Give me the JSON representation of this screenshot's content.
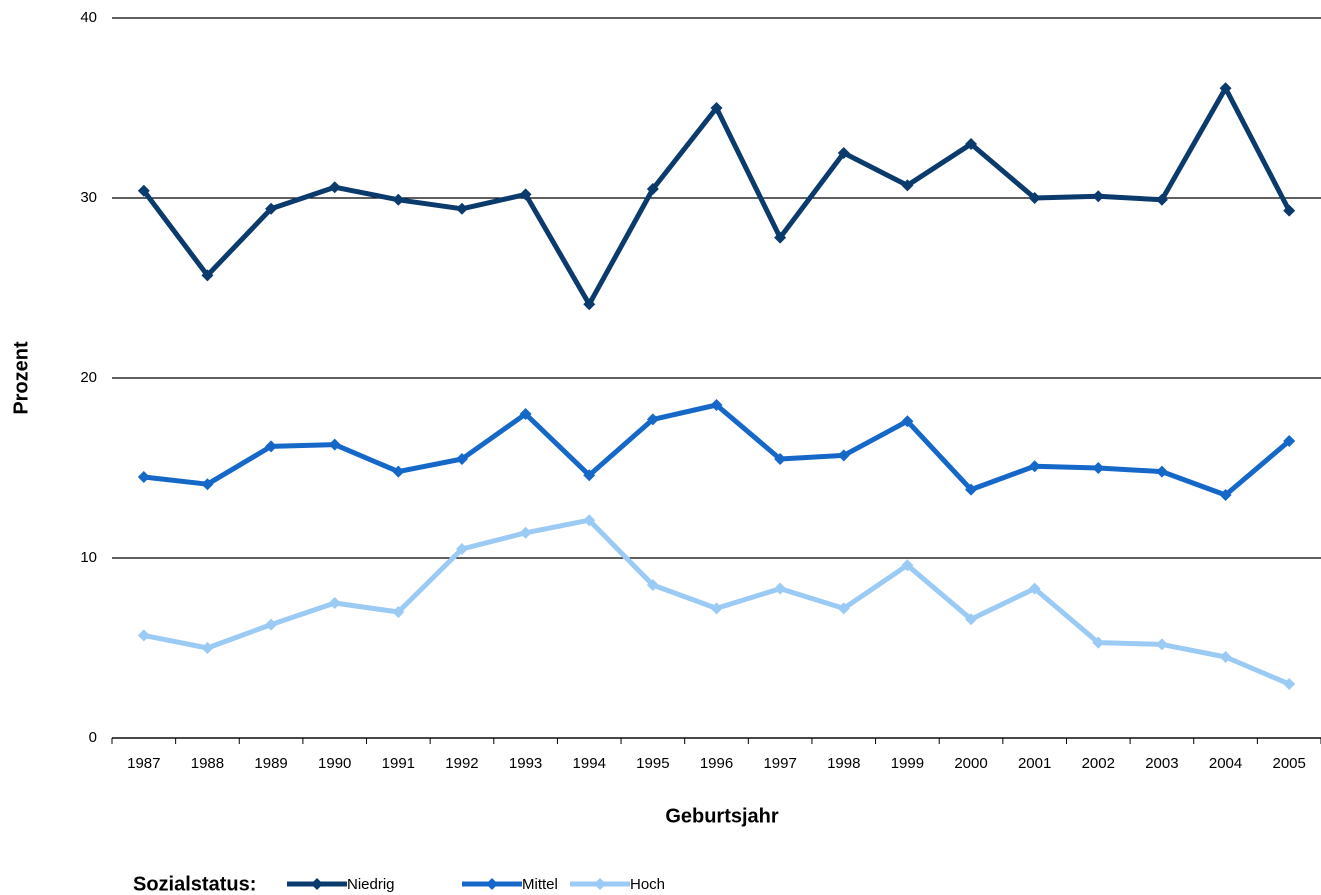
{
  "chart_data": {
    "type": "line",
    "x_label": "Geburtsjahr",
    "y_label": "Prozent",
    "legend_title": "Sozialstatus:",
    "categories": [
      "1987",
      "1988",
      "1989",
      "1990",
      "1991",
      "1992",
      "1993",
      "1994",
      "1995",
      "1996",
      "1997",
      "1998",
      "1999",
      "2000",
      "2001",
      "2002",
      "2003",
      "2004",
      "2005"
    ],
    "series": [
      {
        "name": "Niedrig",
        "color": "#0b3a6c",
        "values": [
          30.4,
          25.7,
          29.4,
          30.6,
          29.9,
          29.4,
          30.2,
          24.1,
          30.5,
          35.0,
          27.8,
          32.5,
          30.7,
          33.0,
          30.0,
          30.1,
          29.9,
          36.1,
          29.3
        ]
      },
      {
        "name": "Mittel",
        "color": "#1568c8",
        "values": [
          14.5,
          14.1,
          16.2,
          16.3,
          14.8,
          15.5,
          18.0,
          14.6,
          17.7,
          18.5,
          15.5,
          15.7,
          17.6,
          13.8,
          15.1,
          15.0,
          14.8,
          13.5,
          16.5
        ]
      },
      {
        "name": "Hoch",
        "color": "#9bcaf5",
        "values": [
          5.7,
          5.0,
          6.3,
          7.5,
          7.0,
          10.5,
          11.4,
          12.1,
          8.5,
          7.2,
          8.3,
          7.2,
          9.6,
          6.6,
          8.3,
          5.3,
          5.2,
          4.5,
          3.0
        ]
      }
    ],
    "ylim": [
      0,
      40
    ],
    "yticks": [
      0,
      10,
      20,
      30,
      40
    ],
    "grid": true,
    "legend": "bottom"
  }
}
